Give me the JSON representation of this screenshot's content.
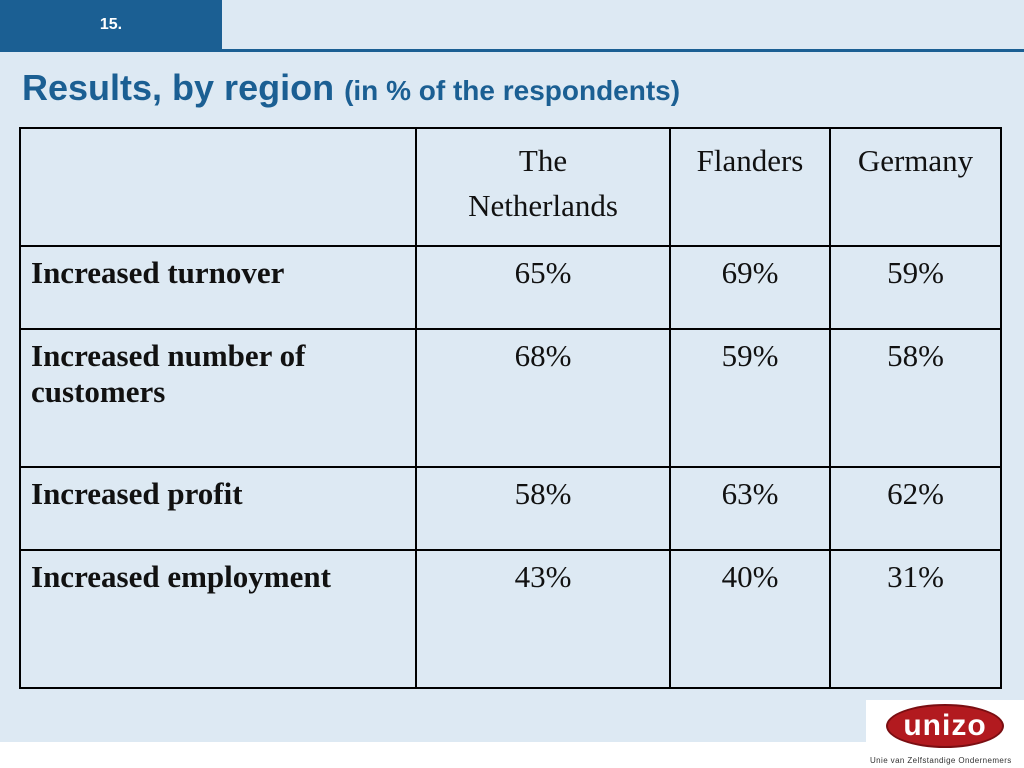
{
  "slide": {
    "number": "15."
  },
  "title": {
    "main": "Results, by region",
    "sub": "(in % of the respondents)"
  },
  "table": {
    "columns": [
      "",
      "The\nNetherlands",
      "Flanders",
      "Germany"
    ],
    "rows": [
      {
        "label": "Increased turnover",
        "values": [
          "65%",
          "69%",
          "59%"
        ]
      },
      {
        "label": "Increased number of customers",
        "values": [
          "68%",
          "59%",
          "58%"
        ]
      },
      {
        "label": "Increased profit",
        "values": [
          "58%",
          "63%",
          "62%"
        ]
      },
      {
        "label": "Increased employment",
        "values": [
          "43%",
          "40%",
          "31%"
        ]
      }
    ]
  },
  "logo": {
    "text": "unizo",
    "tagline": "Unie van Zelfstandige Ondernemers"
  },
  "colors": {
    "accent": "#1b5f93",
    "background": "#dde9f3",
    "logo_red": "#b21a1f"
  }
}
